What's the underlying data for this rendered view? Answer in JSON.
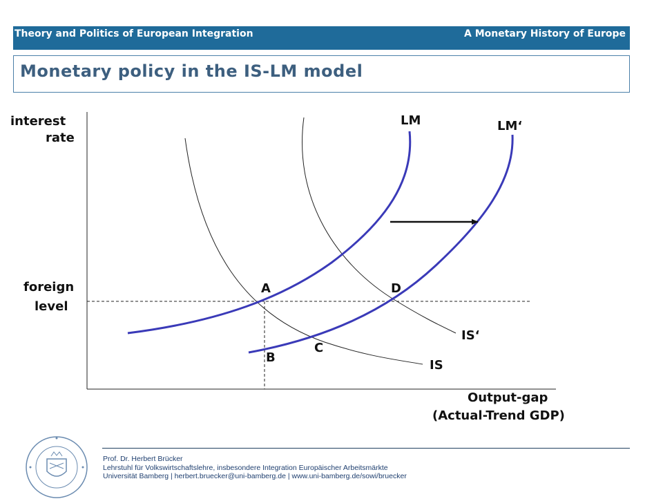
{
  "header": {
    "left_text": "Theory and Politics of European Integration",
    "right_text": "A Monetary History of Europe",
    "bar_color": "#1f6b9a"
  },
  "title": "Monetary policy in the IS-LM model",
  "diagram": {
    "y_axis_label_line1": "interest",
    "y_axis_label_line2": "rate",
    "x_axis_label_line1": "Output-gap",
    "x_axis_label_line2": "(Actual-Trend GDP)",
    "level_label_line1": "foreign",
    "level_label_line2": "level",
    "curves": {
      "lm": "LM",
      "lm_shifted": "LM‘",
      "is": "IS",
      "is_shifted": "IS‘"
    },
    "points": {
      "a": "A",
      "b": "B",
      "c": "C",
      "d": "D"
    },
    "lm_color": "#3a3ab8",
    "is_color": "#222222"
  },
  "footer": {
    "line1": "Prof. Dr. Herbert Brücker",
    "line2": "Lehrstuhl für Volkswirtschaftslehre, insbesondere Integration Europäischer Arbeitsmärkte",
    "line3": "Universität Bamberg | herbert.bruecker@uni-bamberg.de | www.uni-bamberg.de/sowi/bruecker"
  },
  "logo": {
    "text": "OTTO-FRIEDRICH-UNIVERSITÄT BAMBERG"
  }
}
